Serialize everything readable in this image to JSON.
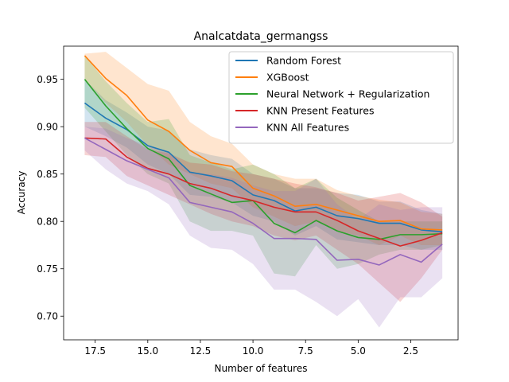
{
  "chart_data": {
    "type": "line",
    "title": "Analcatdata_germangss",
    "xlabel": "Number of features",
    "ylabel": "Accuracy",
    "x_inverted": true,
    "xlim": [
      19.0,
      0.25
    ],
    "ylim": [
      0.675,
      0.985
    ],
    "xticks": [
      17.5,
      15.0,
      12.5,
      10.0,
      7.5,
      5.0,
      2.5
    ],
    "xtick_labels": [
      "17.5",
      "15.0",
      "12.5",
      "10.0",
      "7.5",
      "5.0",
      "2.5"
    ],
    "yticks": [
      0.7,
      0.75,
      0.8,
      0.85,
      0.9,
      0.95
    ],
    "ytick_labels": [
      "0.70",
      "0.75",
      "0.80",
      "0.85",
      "0.90",
      "0.95"
    ],
    "legend_position": "upper right",
    "x": [
      18,
      17,
      16,
      15,
      14,
      13,
      12,
      11,
      10,
      9,
      8,
      7,
      6,
      5,
      4,
      3,
      2,
      1
    ],
    "series": [
      {
        "name": "Random Forest",
        "color": "#1f77b4",
        "values": [
          0.925,
          0.909,
          0.897,
          0.88,
          0.873,
          0.852,
          0.848,
          0.843,
          0.828,
          0.822,
          0.811,
          0.815,
          0.806,
          0.803,
          0.798,
          0.798,
          0.791,
          0.789
        ],
        "lower": [
          0.9,
          0.89,
          0.878,
          0.86,
          0.85,
          0.828,
          0.826,
          0.82,
          0.806,
          0.8,
          0.785,
          0.795,
          0.781,
          0.778,
          0.775,
          0.775,
          0.77,
          0.77
        ],
        "upper": [
          0.95,
          0.928,
          0.915,
          0.9,
          0.896,
          0.876,
          0.87,
          0.866,
          0.85,
          0.845,
          0.835,
          0.835,
          0.83,
          0.828,
          0.821,
          0.821,
          0.812,
          0.808
        ]
      },
      {
        "name": "XGBoost",
        "color": "#ff7f0e",
        "values": [
          0.975,
          0.951,
          0.933,
          0.907,
          0.895,
          0.875,
          0.862,
          0.858,
          0.835,
          0.827,
          0.816,
          0.818,
          0.812,
          0.806,
          0.8,
          0.801,
          0.792,
          0.791
        ],
        "lower": [
          0.95,
          0.925,
          0.905,
          0.88,
          0.86,
          0.85,
          0.84,
          0.835,
          0.815,
          0.805,
          0.795,
          0.8,
          0.79,
          0.785,
          0.775,
          0.785,
          0.775,
          0.775
        ],
        "upper": [
          0.977,
          0.979,
          0.962,
          0.945,
          0.938,
          0.905,
          0.89,
          0.882,
          0.86,
          0.85,
          0.845,
          0.845,
          0.833,
          0.827,
          0.823,
          0.82,
          0.81,
          0.808
        ]
      },
      {
        "name": "Neural Network + Regularization",
        "color": "#2ca02c",
        "values": [
          0.95,
          0.922,
          0.898,
          0.877,
          0.866,
          0.838,
          0.829,
          0.82,
          0.822,
          0.798,
          0.788,
          0.801,
          0.79,
          0.783,
          0.781,
          0.786,
          0.786,
          0.787
        ],
        "lower": [
          0.92,
          0.895,
          0.87,
          0.85,
          0.84,
          0.8,
          0.79,
          0.79,
          0.785,
          0.745,
          0.742,
          0.775,
          0.75,
          0.755,
          0.765,
          0.77,
          0.77,
          0.775
        ],
        "upper": [
          0.975,
          0.948,
          0.925,
          0.905,
          0.908,
          0.87,
          0.862,
          0.855,
          0.86,
          0.85,
          0.835,
          0.845,
          0.825,
          0.812,
          0.8,
          0.8,
          0.8,
          0.8
        ]
      },
      {
        "name": "KNN Present Features",
        "color": "#d62728",
        "values": [
          0.888,
          0.887,
          0.868,
          0.856,
          0.85,
          0.84,
          0.835,
          0.827,
          0.822,
          0.815,
          0.81,
          0.81,
          0.801,
          0.79,
          0.782,
          0.774,
          0.78,
          0.788
        ],
        "lower": [
          0.87,
          0.868,
          0.848,
          0.838,
          0.828,
          0.818,
          0.808,
          0.8,
          0.795,
          0.785,
          0.78,
          0.785,
          0.77,
          0.755,
          0.735,
          0.715,
          0.74,
          0.77
        ],
        "upper": [
          0.905,
          0.905,
          0.89,
          0.876,
          0.872,
          0.862,
          0.86,
          0.853,
          0.85,
          0.845,
          0.84,
          0.836,
          0.83,
          0.822,
          0.826,
          0.83,
          0.82,
          0.805
        ]
      },
      {
        "name": "KNN All Features",
        "color": "#9467bd",
        "values": [
          0.888,
          0.876,
          0.864,
          0.855,
          0.846,
          0.82,
          0.815,
          0.81,
          0.798,
          0.782,
          0.782,
          0.781,
          0.759,
          0.76,
          0.754,
          0.765,
          0.757,
          0.776
        ],
        "lower": [
          0.875,
          0.855,
          0.84,
          0.832,
          0.818,
          0.785,
          0.772,
          0.77,
          0.755,
          0.728,
          0.728,
          0.715,
          0.7,
          0.718,
          0.688,
          0.72,
          0.72,
          0.74
        ],
        "upper": [
          0.9,
          0.898,
          0.888,
          0.88,
          0.872,
          0.852,
          0.85,
          0.846,
          0.838,
          0.832,
          0.832,
          0.845,
          0.818,
          0.802,
          0.818,
          0.812,
          0.815,
          0.815
        ]
      }
    ]
  }
}
